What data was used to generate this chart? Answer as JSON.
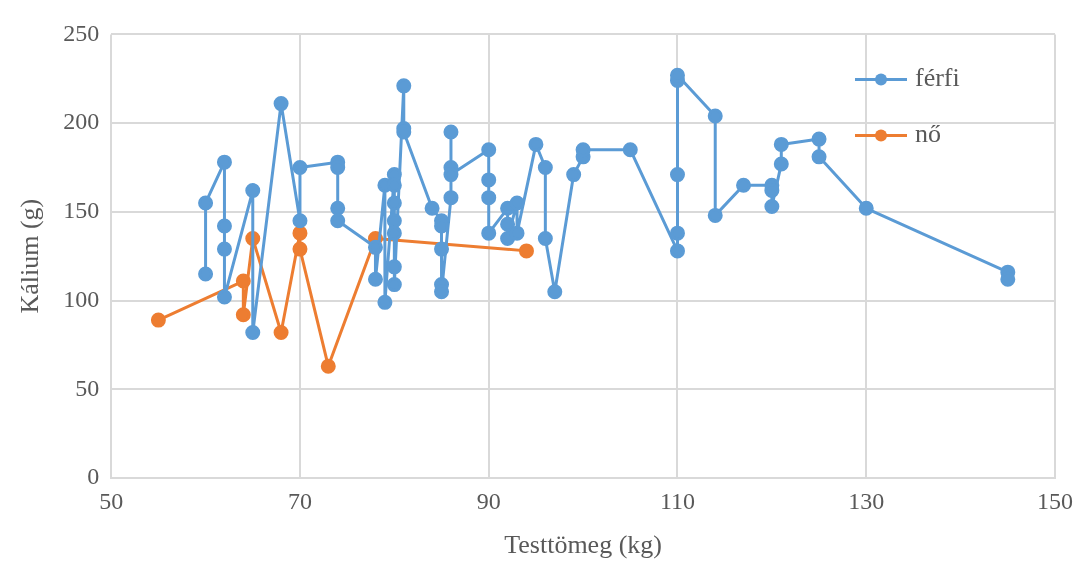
{
  "chart_data": {
    "type": "line",
    "xlabel": "Testtömeg (kg)",
    "ylabel": "Kálium (g)",
    "xlim": [
      50,
      150
    ],
    "xticks": [
      50,
      70,
      90,
      110,
      130,
      150
    ],
    "ylim": [
      0,
      250
    ],
    "yticks": [
      0,
      50,
      100,
      150,
      200,
      250
    ],
    "grid": true,
    "legend": "top right",
    "marker": "circle",
    "line_style": "solid",
    "series": [
      {
        "name": "férfi",
        "color": "#5b9bd5",
        "x": [
          60,
          60,
          62,
          62,
          62,
          62,
          65,
          65,
          68,
          70,
          70,
          74,
          74,
          74,
          74,
          78,
          78,
          79,
          79,
          80,
          80,
          80,
          80,
          80,
          80,
          80,
          81,
          81,
          81,
          84,
          85,
          85,
          85,
          85,
          85,
          86,
          86,
          86,
          86,
          90,
          90,
          90,
          90,
          92,
          92,
          92,
          93,
          93,
          95,
          96,
          96,
          97,
          99,
          100,
          100,
          105,
          110,
          110,
          110,
          110,
          110,
          114,
          114,
          117,
          120,
          120,
          120,
          121,
          121,
          125,
          125,
          130,
          145,
          145
        ],
        "values": [
          115,
          155,
          178,
          142,
          129,
          102,
          162,
          82,
          211,
          145,
          175,
          178,
          175,
          152,
          145,
          130,
          112,
          165,
          99,
          171,
          165,
          155,
          145,
          138,
          119,
          109,
          221,
          197,
          195,
          152,
          145,
          142,
          129,
          109,
          105,
          158,
          195,
          175,
          171,
          185,
          168,
          158,
          138,
          152,
          143,
          135,
          155,
          138,
          188,
          175,
          135,
          105,
          171,
          181,
          185,
          185,
          128,
          138,
          171,
          224,
          227,
          204,
          148,
          165,
          165,
          162,
          153,
          177,
          188,
          191,
          181,
          152,
          116,
          112
        ]
      },
      {
        "name": "nő",
        "color": "#ed7d31",
        "x": [
          55,
          64,
          64,
          65,
          68,
          70,
          70,
          73,
          78,
          94
        ],
        "values": [
          89,
          111,
          92,
          135,
          82,
          138,
          129,
          63,
          135,
          128
        ]
      }
    ]
  }
}
